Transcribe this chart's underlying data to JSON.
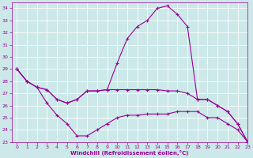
{
  "xlabel": "Windchill (Refroidissement éolien,°C)",
  "background_color": "#cce8e8",
  "grid_color": "#aacccc",
  "line_color": "#990099",
  "xlim": [
    -0.5,
    23
  ],
  "ylim": [
    23,
    34.5
  ],
  "yticks": [
    23,
    24,
    25,
    26,
    27,
    28,
    29,
    30,
    31,
    32,
    33,
    34
  ],
  "xticks": [
    0,
    1,
    2,
    3,
    4,
    5,
    6,
    7,
    8,
    9,
    10,
    11,
    12,
    13,
    14,
    15,
    16,
    17,
    18,
    19,
    20,
    21,
    22,
    23
  ],
  "series": [
    [
      29.0,
      28.0,
      27.5,
      27.3,
      26.5,
      26.2,
      26.5,
      27.2,
      27.2,
      27.3,
      29.5,
      31.5,
      32.5,
      33.0,
      34.0,
      34.2,
      33.5,
      32.5,
      26.5,
      26.5,
      26.0,
      25.5,
      24.5,
      23.0
    ],
    [
      29.0,
      28.0,
      27.5,
      27.3,
      26.5,
      26.2,
      26.5,
      27.2,
      27.2,
      27.3,
      27.3,
      27.3,
      27.3,
      27.3,
      27.3,
      27.2,
      27.2,
      27.0,
      26.5,
      26.5,
      26.0,
      25.5,
      24.5,
      23.0
    ],
    [
      29.0,
      28.0,
      27.5,
      26.2,
      25.2,
      24.5,
      23.5,
      23.5,
      24.0,
      24.5,
      25.0,
      25.2,
      25.2,
      25.3,
      25.3,
      25.3,
      25.5,
      25.5,
      25.5,
      25.0,
      25.0,
      24.5,
      24.0,
      23.0
    ]
  ]
}
